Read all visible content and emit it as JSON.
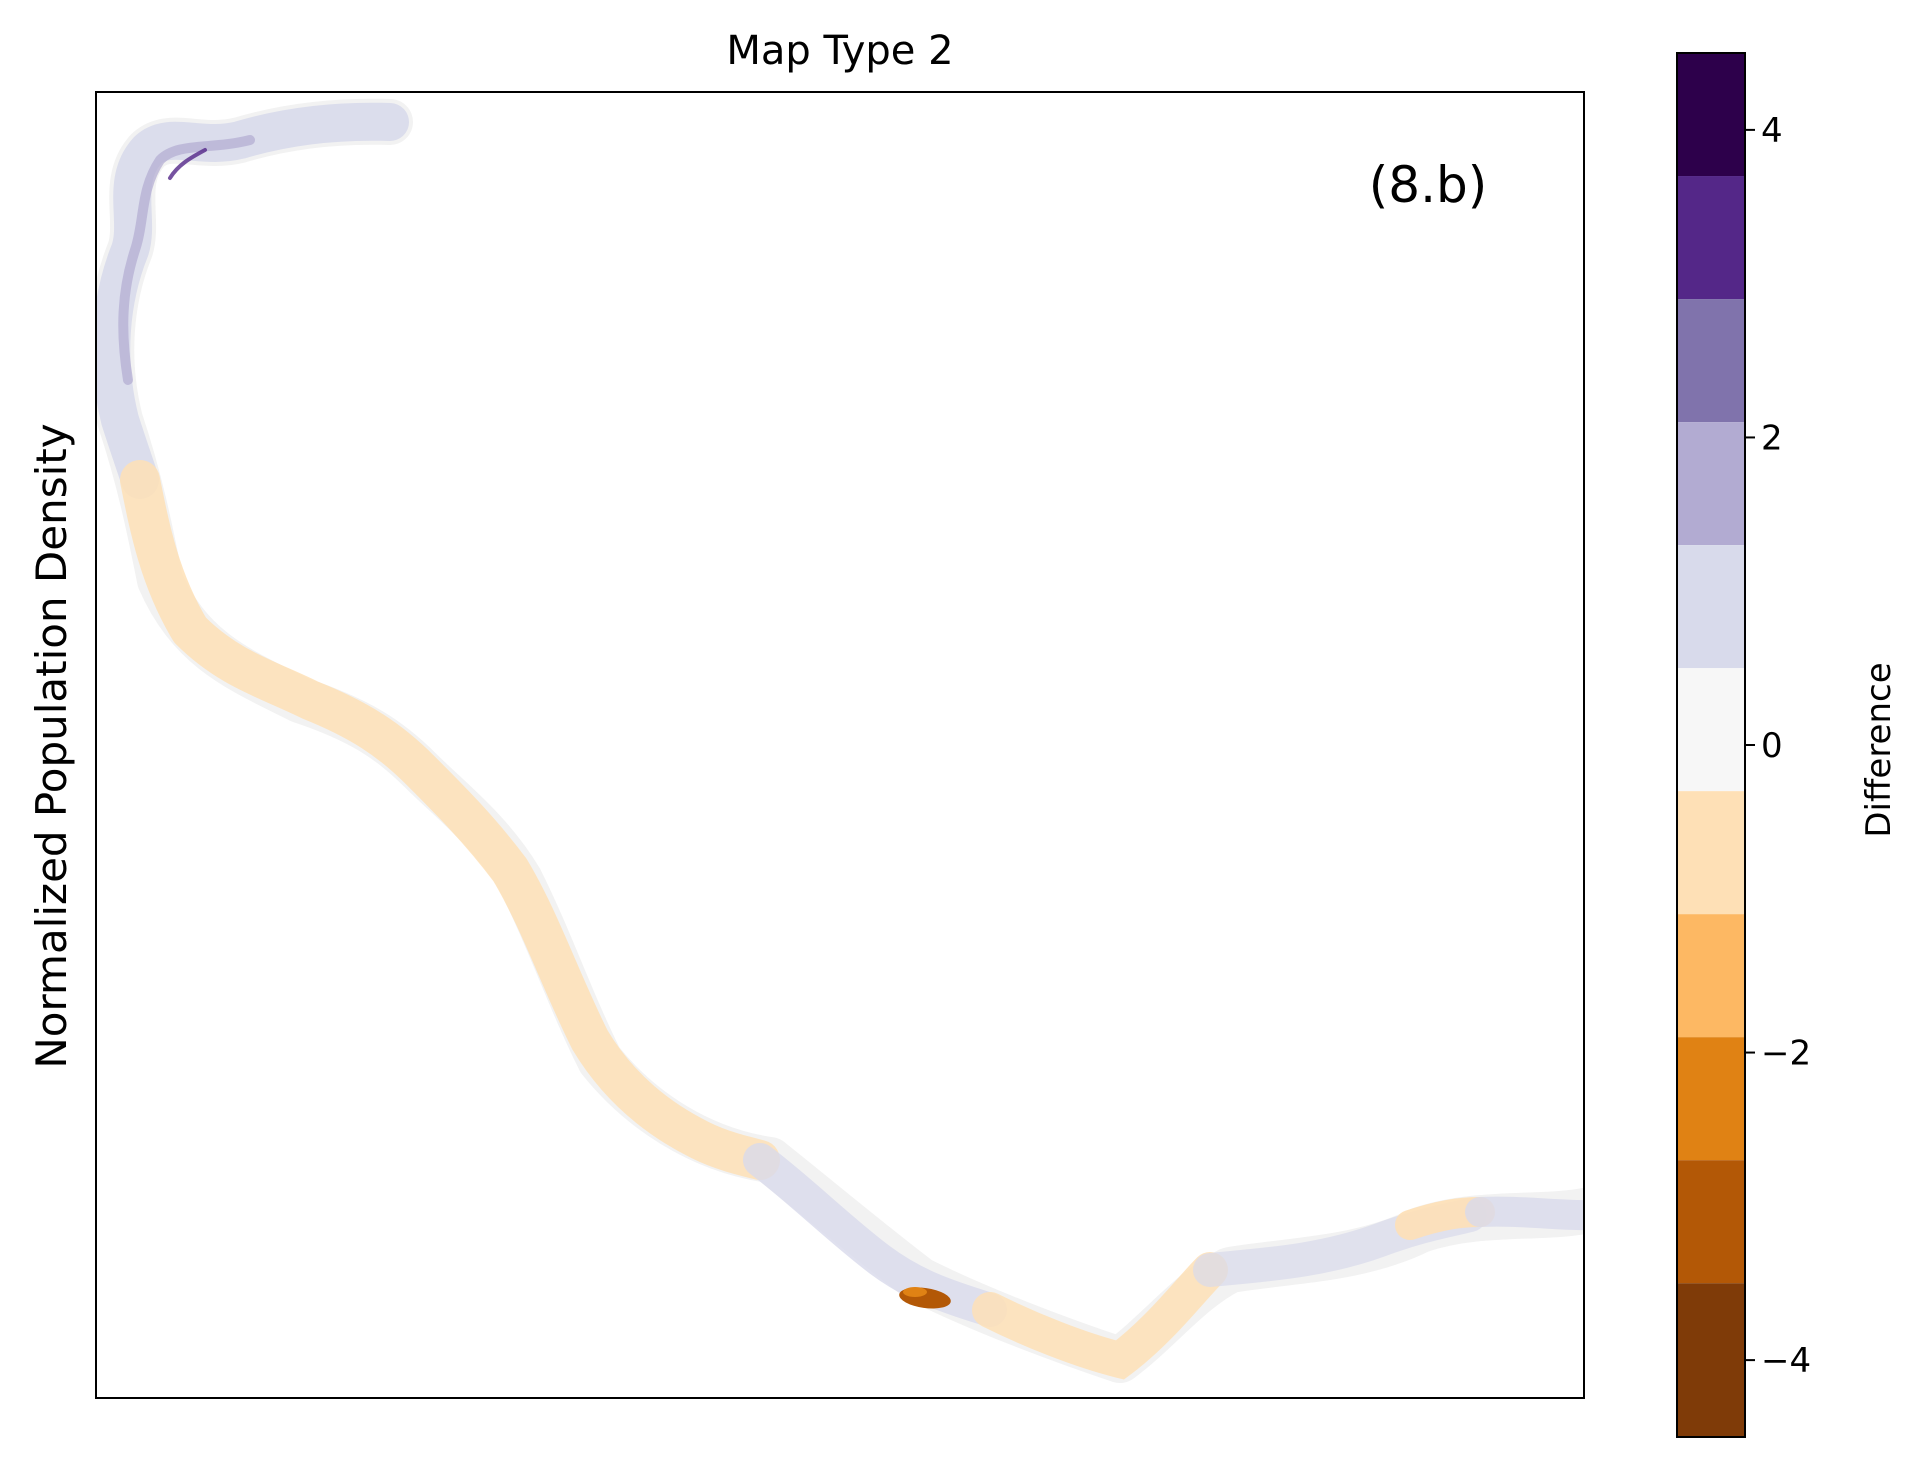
{
  "title": "Map Type 2",
  "ylabel": "Normalized Population Density",
  "panel_label": "(8.b)",
  "colorbar": {
    "label": "Difference",
    "ticks": [
      {
        "value": 4,
        "label": "4"
      },
      {
        "value": 2,
        "label": "2"
      },
      {
        "value": 0,
        "label": "0"
      },
      {
        "value": -2,
        "label": "−2"
      },
      {
        "value": -4,
        "label": "−4"
      }
    ],
    "range": [
      -4.5,
      4.5
    ],
    "bins": [
      {
        "from": 3.7,
        "to": 4.5,
        "color": "#2d004b"
      },
      {
        "from": 2.9,
        "to": 3.7,
        "color": "#542788"
      },
      {
        "from": 2.1,
        "to": 2.9,
        "color": "#8073ac"
      },
      {
        "from": 1.3,
        "to": 2.1,
        "color": "#b2abd2"
      },
      {
        "from": 0.5,
        "to": 1.3,
        "color": "#d8daeb"
      },
      {
        "from": -0.3,
        "to": 0.5,
        "color": "#f7f7f7"
      },
      {
        "from": -1.1,
        "to": -0.3,
        "color": "#fee0b6"
      },
      {
        "from": -1.9,
        "to": -1.1,
        "color": "#fdb863"
      },
      {
        "from": -2.7,
        "to": -1.9,
        "color": "#e08214"
      },
      {
        "from": -3.5,
        "to": -2.7,
        "color": "#b35806"
      },
      {
        "from": -4.5,
        "to": -3.5,
        "color": "#7f3b08"
      }
    ]
  }
}
